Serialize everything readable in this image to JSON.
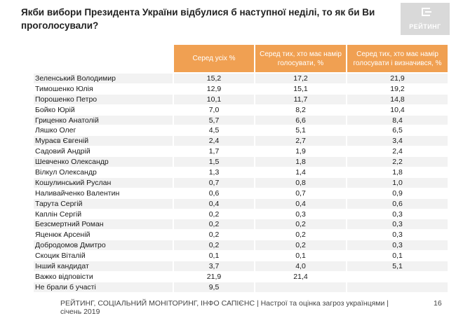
{
  "title": "Якби вибори Президента України відбулися б наступної неділі, то як би Ви проголосували?",
  "logo": {
    "text": "РЕЙТИНГ"
  },
  "table": {
    "headers": [
      "Серед усіх %",
      "Серед тих, хто має намір голосувати, %",
      "Серед тих, хто має намір голосувати і визначився, %"
    ],
    "rows": [
      {
        "name": "Зеленський Володимир",
        "v1": "15,2",
        "v2": "17,2",
        "v3": "21,9"
      },
      {
        "name": "Тимошенко Юлія",
        "v1": "12,9",
        "v2": "15,1",
        "v3": "19,2"
      },
      {
        "name": "Порошенко Петро",
        "v1": "10,1",
        "v2": "11,7",
        "v3": "14,8"
      },
      {
        "name": "Бойко Юрій",
        "v1": "7,0",
        "v2": "8,2",
        "v3": "10,4"
      },
      {
        "name": "Гриценко Анатолій",
        "v1": "5,7",
        "v2": "6,6",
        "v3": "8,4"
      },
      {
        "name": "Ляшко Олег",
        "v1": "4,5",
        "v2": "5,1",
        "v3": "6,5"
      },
      {
        "name": "Мураєв Євгеній",
        "v1": "2,4",
        "v2": "2,7",
        "v3": "3,4"
      },
      {
        "name": "Садовий Андрій",
        "v1": "1,7",
        "v2": "1,9",
        "v3": "2,4"
      },
      {
        "name": "Шевченко Олександр",
        "v1": "1,5",
        "v2": "1,8",
        "v3": "2,2"
      },
      {
        "name": "Вілкул Олександр",
        "v1": "1,3",
        "v2": "1,4",
        "v3": "1,8"
      },
      {
        "name": "Кошулинський Руслан",
        "v1": "0,7",
        "v2": "0,8",
        "v3": "1,0"
      },
      {
        "name": "Наливайченко Валентин",
        "v1": "0,6",
        "v2": "0,7",
        "v3": "0,9"
      },
      {
        "name": "Тарута Сергій",
        "v1": "0,4",
        "v2": "0,4",
        "v3": "0,6"
      },
      {
        "name": "Каплін Сергій",
        "v1": "0,2",
        "v2": "0,3",
        "v3": "0,3"
      },
      {
        "name": "Безсмертний Роман",
        "v1": "0,2",
        "v2": "0,2",
        "v3": "0,3"
      },
      {
        "name": "Яценюк Арсеній",
        "v1": "0,2",
        "v2": "0,2",
        "v3": "0,3"
      },
      {
        "name": "Добродомов Дмитро",
        "v1": "0,2",
        "v2": "0,2",
        "v3": "0,3"
      },
      {
        "name": "Скоцик Віталій",
        "v1": "0,1",
        "v2": "0,1",
        "v3": "0,1"
      },
      {
        "name": "Інший кандидат",
        "v1": "3,7",
        "v2": "4,0",
        "v3": "5,1"
      },
      {
        "name": "Важко відповісти",
        "v1": "21,9",
        "v2": "21,4",
        "v3": ""
      },
      {
        "name": "Не брали б участі",
        "v1": "9,5",
        "v2": "",
        "v3": ""
      }
    ]
  },
  "footer": "РЕЙТИНГ, СОЦІАЛЬНИЙ МОНІТОРИНГ, ІНФО САПІЄНС | Настрої та оцінка загроз українцями | січень 2019",
  "page_number": "16",
  "colors": {
    "header_bg": "#f0a052",
    "stripe": "#f2f2f2",
    "logo_bg": "#d9d9d9"
  }
}
